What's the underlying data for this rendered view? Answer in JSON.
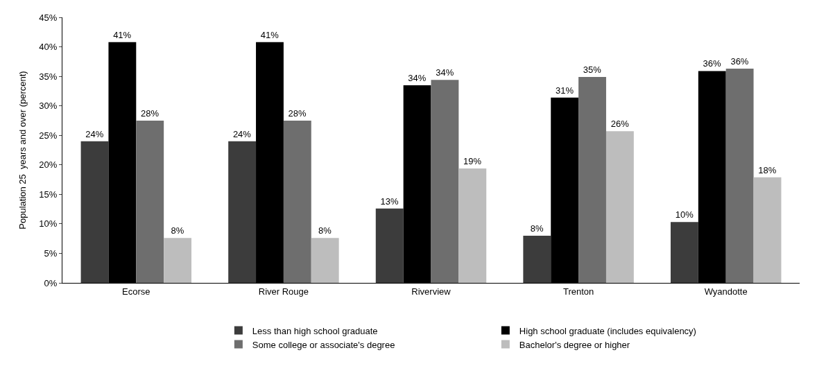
{
  "chart_data": {
    "type": "bar",
    "ylabel": "Population 25  years and over (percent)",
    "categories": [
      "Ecorse",
      "River Rouge",
      "Riverview",
      "Trenton",
      "Wyandotte"
    ],
    "series": [
      {
        "name": "Less than high school graduate",
        "color": "#3c3c3c",
        "values": [
          24.0,
          24.0,
          12.6,
          8.0,
          10.3
        ],
        "value_labels": [
          "24%",
          "24%",
          "13%",
          "8%",
          "10%"
        ]
      },
      {
        "name": "High school graduate (includes equivalency)",
        "color": "#000000",
        "values": [
          40.8,
          40.8,
          33.5,
          31.4,
          35.9
        ],
        "value_labels": [
          "41%",
          "41%",
          "34%",
          "31%",
          "36%"
        ]
      },
      {
        "name": "Some college or associate's degree",
        "color": "#6e6e6e",
        "values": [
          27.5,
          27.5,
          34.4,
          34.9,
          36.3
        ],
        "value_labels": [
          "28%",
          "28%",
          "34%",
          "35%",
          "36%"
        ]
      },
      {
        "name": "Bachelor's degree or higher",
        "color": "#bdbdbd",
        "values": [
          7.6,
          7.6,
          19.4,
          25.7,
          17.9
        ],
        "value_labels": [
          "8%",
          "8%",
          "19%",
          "26%",
          "18%"
        ]
      }
    ],
    "ylim": [
      0,
      45
    ],
    "yticks": [
      {
        "value": 0,
        "label": "0%"
      },
      {
        "value": 5,
        "label": "5%"
      },
      {
        "value": 10,
        "label": "10%"
      },
      {
        "value": 15,
        "label": "15%"
      },
      {
        "value": 20,
        "label": "20%"
      },
      {
        "value": 25,
        "label": "25%"
      },
      {
        "value": 30,
        "label": "30%"
      },
      {
        "value": 35,
        "label": "35%"
      },
      {
        "value": 40,
        "label": "40%"
      },
      {
        "value": 45,
        "label": "45%"
      }
    ],
    "legend": "bottom"
  }
}
